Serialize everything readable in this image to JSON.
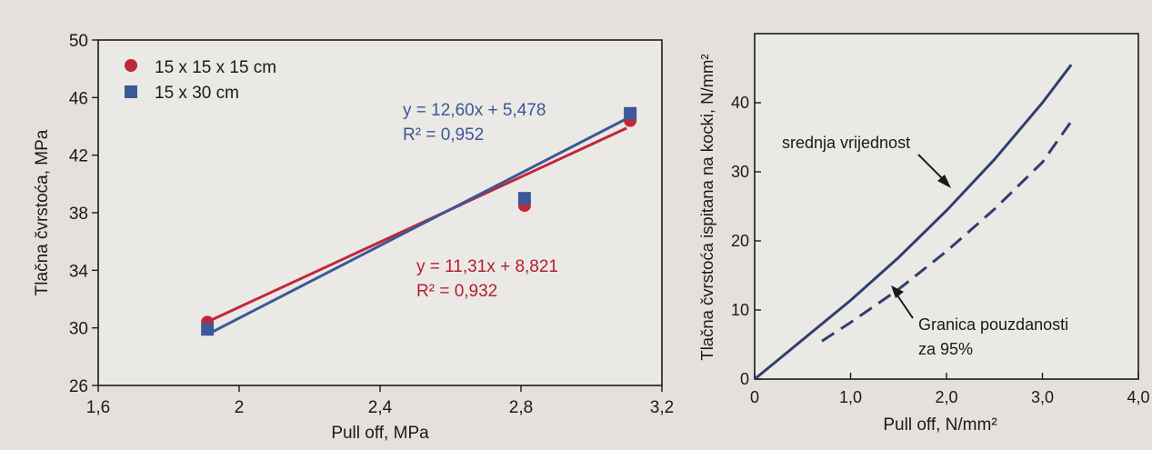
{
  "chart_data": [
    {
      "type": "scatter",
      "title": "",
      "xlabel": "Pull off, MPa",
      "ylabel": "Tlačna čvrstoća, MPa",
      "xlim": [
        1.6,
        3.2
      ],
      "ylim": [
        26,
        50
      ],
      "x_ticks": [
        "1,6",
        "2",
        "2,4",
        "2,8",
        "3,2"
      ],
      "x_tick_values": [
        1.6,
        2.0,
        2.4,
        2.8,
        3.2
      ],
      "y_ticks": [
        "26",
        "30",
        "34",
        "38",
        "42",
        "46",
        "50"
      ],
      "y_tick_values": [
        26,
        30,
        34,
        38,
        42,
        46,
        50
      ],
      "legend_position": "top-left",
      "series": [
        {
          "name": "15 x 15 x 15 cm",
          "marker": "circle",
          "color": "#c0283a",
          "x": [
            1.91,
            2.81,
            3.11
          ],
          "y": [
            30.4,
            38.5,
            44.4
          ],
          "trendline": {
            "equation": "y = 11,31x + 8,821",
            "r2": "R² = 0,932",
            "slope": 11.31,
            "intercept": 8.821,
            "x_range": [
              1.91,
              3.1
            ]
          }
        },
        {
          "name": "15 x 30 cm",
          "marker": "square",
          "color": "#3c5896",
          "x": [
            1.91,
            2.81,
            3.11
          ],
          "y": [
            29.9,
            39.0,
            44.9
          ],
          "trendline": {
            "equation": "y = 12,60x + 5,478",
            "r2": "R² = 0,952",
            "slope": 12.6,
            "intercept": 5.478,
            "x_range": [
              1.91,
              3.1
            ]
          }
        }
      ]
    },
    {
      "type": "line",
      "title": "",
      "xlabel": "Pull off, N/mm²",
      "ylabel": "Tlačna čvrstoća ispitana na kocki, N/mm²",
      "xlim": [
        0,
        4.0
      ],
      "ylim": [
        0,
        50
      ],
      "x_ticks": [
        "0",
        "1,0",
        "2,0",
        "3,0",
        "4,0"
      ],
      "x_tick_values": [
        0,
        1.0,
        2.0,
        3.0,
        4.0
      ],
      "y_ticks": [
        "0",
        "10",
        "20",
        "30",
        "40"
      ],
      "y_tick_values": [
        0,
        10,
        20,
        30,
        40
      ],
      "series": [
        {
          "name": "srednja vrijednost",
          "style": "solid",
          "color": "#2f3f6e",
          "x": [
            0,
            0.5,
            1.0,
            1.5,
            2.0,
            2.5,
            3.0,
            3.3
          ],
          "y": [
            0,
            5.7,
            11.4,
            17.6,
            24.4,
            31.8,
            40.0,
            45.5
          ]
        },
        {
          "name": "Granica pouzdanosti za 95%",
          "style": "dashed",
          "color": "#2f3f6e",
          "x": [
            0.7,
            1.0,
            1.5,
            2.0,
            2.5,
            3.0,
            3.3
          ],
          "y": [
            5.5,
            8.2,
            13.0,
            18.5,
            24.6,
            31.4,
            37.3
          ]
        }
      ],
      "annotations": [
        {
          "text": "srednja vrijednost",
          "points_to": [
            2.22,
            27.3
          ]
        },
        {
          "text_lines": [
            "Granica pouzdanosti",
            "za 95%"
          ],
          "points_to": [
            1.98,
            13.8
          ]
        }
      ]
    }
  ]
}
